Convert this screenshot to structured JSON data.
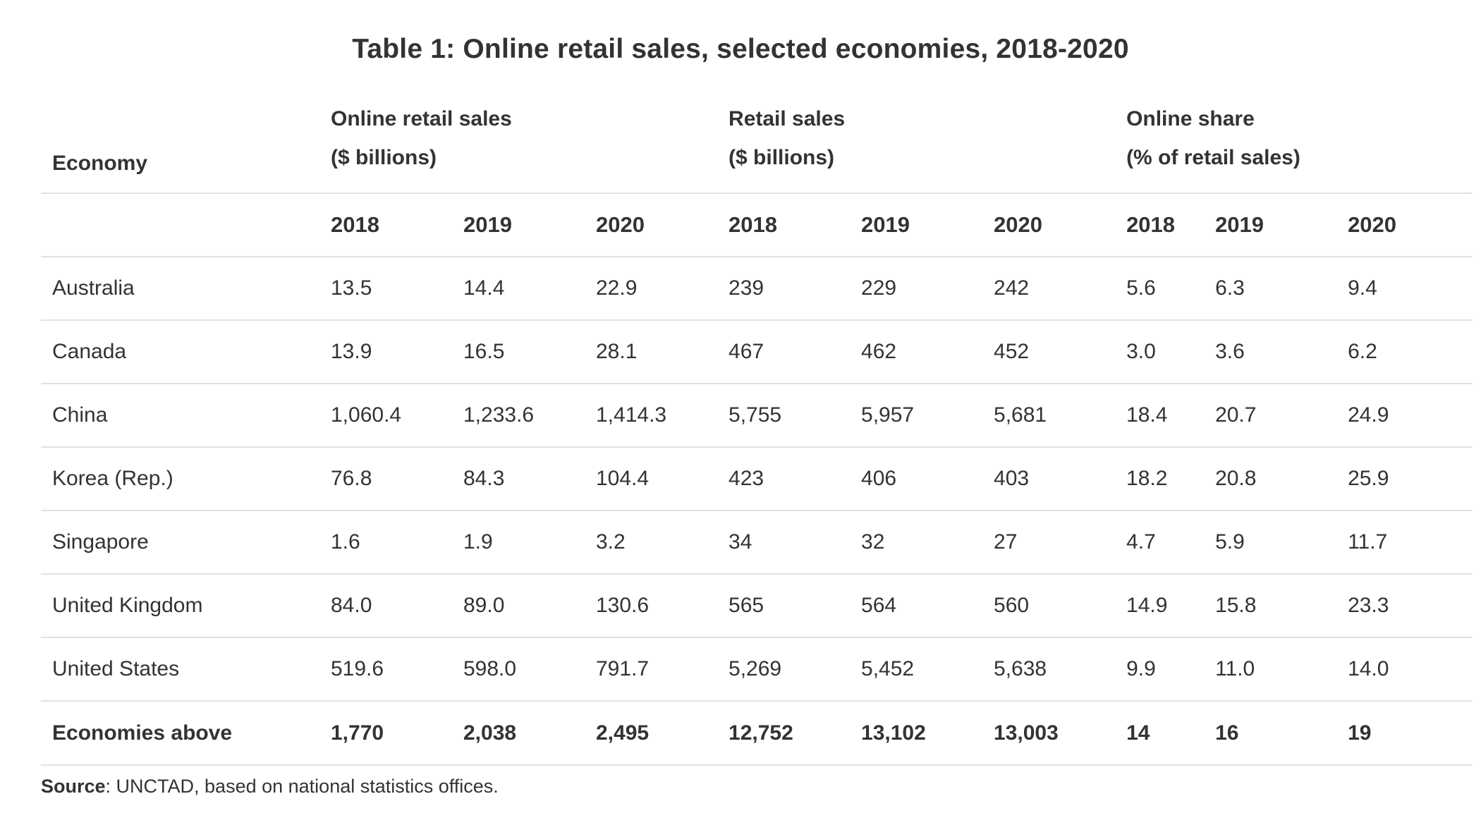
{
  "title": "Table 1: Online retail sales, selected economies, 2018-2020",
  "header": {
    "economy_label": "Economy",
    "groups": [
      {
        "line1": "Online retail sales",
        "line2": "($ billions)"
      },
      {
        "line1": "Retail sales",
        "line2": "($ billions)"
      },
      {
        "line1": "Online share",
        "line2": "(% of retail sales)"
      }
    ],
    "years": [
      "2018",
      "2019",
      "2020",
      "2018",
      "2019",
      "2020",
      "2018",
      "2019",
      "2020"
    ]
  },
  "rows": [
    {
      "economy": "Australia",
      "values": [
        "13.5",
        "14.4",
        "22.9",
        "239",
        "229",
        "242",
        "5.6",
        "6.3",
        "9.4"
      ]
    },
    {
      "economy": "Canada",
      "values": [
        "13.9",
        "16.5",
        "28.1",
        "467",
        "462",
        "452",
        "3.0",
        "3.6",
        "6.2"
      ]
    },
    {
      "economy": "China",
      "values": [
        "1,060.4",
        "1,233.6",
        "1,414.3",
        "5,755",
        "5,957",
        "5,681",
        "18.4",
        "20.7",
        "24.9"
      ]
    },
    {
      "economy": "Korea (Rep.)",
      "values": [
        "76.8",
        "84.3",
        "104.4",
        "423",
        "406",
        "403",
        "18.2",
        "20.8",
        "25.9"
      ]
    },
    {
      "economy": "Singapore",
      "values": [
        "1.6",
        "1.9",
        "3.2",
        "34",
        "32",
        "27",
        "4.7",
        "5.9",
        "11.7"
      ]
    },
    {
      "economy": "United Kingdom",
      "values": [
        "84.0",
        "89.0",
        "130.6",
        "565",
        "564",
        "560",
        "14.9",
        "15.8",
        "23.3"
      ]
    },
    {
      "economy": "United States",
      "values": [
        "519.6",
        "598.0",
        "791.7",
        "5,269",
        "5,452",
        "5,638",
        "9.9",
        "11.0",
        "14.0"
      ]
    }
  ],
  "total": {
    "economy": "Economies above",
    "values": [
      "1,770",
      "2,038",
      "2,495",
      "12,752",
      "13,102",
      "13,003",
      "14",
      "16",
      "19"
    ]
  },
  "source": {
    "label": "Source",
    "text": ": UNCTAD, based on national statistics offices."
  }
}
